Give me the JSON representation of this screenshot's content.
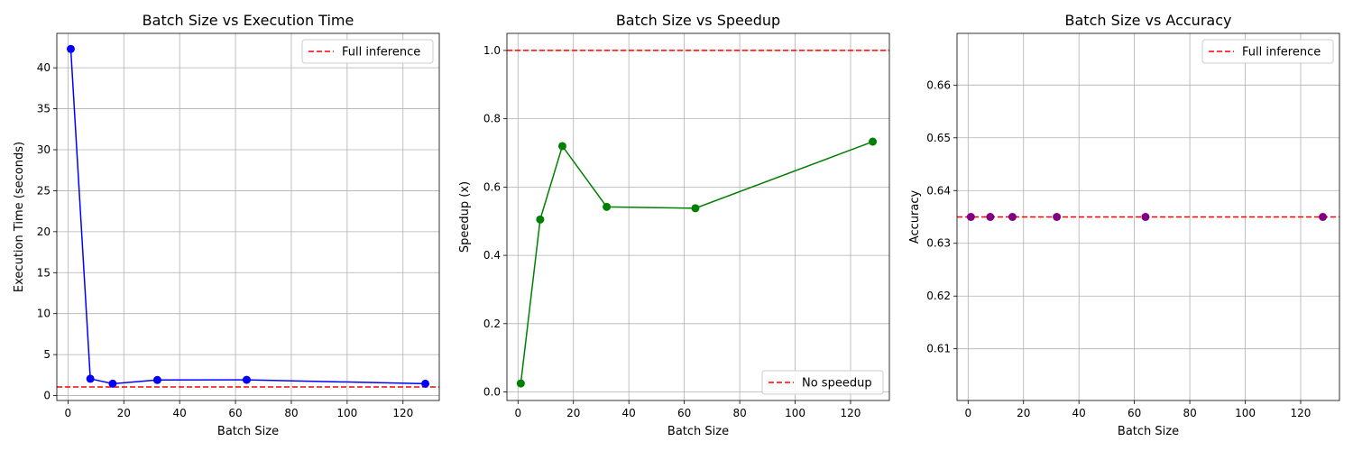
{
  "chart_data": [
    {
      "type": "line",
      "title": "Batch Size vs Execution Time",
      "xlabel": "Batch Size",
      "ylabel": "Execution Time (seconds)",
      "xlim": [
        -4,
        133
      ],
      "ylim": [
        -0.6,
        44.2
      ],
      "xticks": [
        0,
        20,
        40,
        60,
        80,
        100,
        120
      ],
      "yticks": [
        0,
        5,
        10,
        15,
        20,
        25,
        30,
        35,
        40
      ],
      "grid": true,
      "legend_position": "upper right",
      "series": [
        {
          "x": [
            1,
            8,
            16,
            32,
            64,
            128
          ],
          "values": [
            42.3,
            2.05,
            1.45,
            1.9,
            1.92,
            1.45
          ],
          "color": "#0000ff",
          "marker": "circle"
        }
      ],
      "reference_lines": [
        {
          "label": "Full inference",
          "y": 1.05,
          "color": "#ff0000",
          "style": "dashed"
        }
      ]
    },
    {
      "type": "line",
      "title": "Batch Size vs Speedup",
      "xlabel": "Batch Size",
      "ylabel": "Speedup (x)",
      "xlim": [
        -4,
        134
      ],
      "ylim": [
        -0.025,
        1.05
      ],
      "xticks": [
        0,
        20,
        40,
        60,
        80,
        100,
        120
      ],
      "yticks": [
        "0.0",
        "0.2",
        "0.4",
        "0.6",
        "0.8",
        "1.0"
      ],
      "grid": true,
      "legend_position": "lower right",
      "series": [
        {
          "x": [
            1,
            8,
            16,
            32,
            64,
            128
          ],
          "values": [
            0.025,
            0.505,
            0.72,
            0.542,
            0.538,
            0.733
          ],
          "color": "#008000",
          "marker": "circle"
        }
      ],
      "reference_lines": [
        {
          "label": "No speedup",
          "y": 1.0,
          "color": "#ff0000",
          "style": "dashed"
        }
      ]
    },
    {
      "type": "scatter",
      "title": "Batch Size vs Accuracy",
      "xlabel": "Batch Size",
      "ylabel": "Accuracy",
      "xlim": [
        -4,
        134
      ],
      "ylim": [
        0.6002,
        0.6698
      ],
      "xticks": [
        0,
        20,
        40,
        60,
        80,
        100,
        120
      ],
      "yticks": [
        "0.61",
        "0.62",
        "0.63",
        "0.64",
        "0.65",
        "0.66"
      ],
      "grid": true,
      "legend_position": "upper right",
      "series": [
        {
          "x": [
            1,
            8,
            16,
            32,
            64,
            128
          ],
          "values": [
            0.635,
            0.635,
            0.635,
            0.635,
            0.635,
            0.635
          ],
          "color": "#800080",
          "marker": "circle"
        }
      ],
      "reference_lines": [
        {
          "label": "Full inference",
          "y": 0.635,
          "color": "#ff0000",
          "style": "dashed"
        }
      ]
    }
  ]
}
